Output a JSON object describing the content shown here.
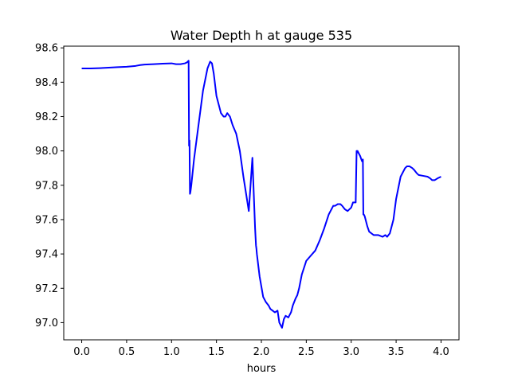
{
  "chart_data": {
    "type": "line",
    "title": "Water Depth h at gauge 535",
    "xlabel": "hours",
    "ylabel": "",
    "xlim": [
      -0.2,
      4.2
    ],
    "ylim": [
      96.9,
      98.61
    ],
    "xticks": [
      0.0,
      0.5,
      1.0,
      1.5,
      2.0,
      2.5,
      3.0,
      3.5,
      4.0
    ],
    "xtick_labels": [
      "0.0",
      "0.5",
      "1.0",
      "1.5",
      "2.0",
      "2.5",
      "3.0",
      "3.5",
      "4.0"
    ],
    "yticks": [
      97.0,
      97.2,
      97.4,
      97.6,
      97.8,
      98.0,
      98.2,
      98.4,
      98.6
    ],
    "ytick_labels": [
      "97.0",
      "97.2",
      "97.4",
      "97.6",
      "97.8",
      "98.0",
      "98.2",
      "98.4",
      "98.6"
    ],
    "grid": false,
    "series": [
      {
        "color": "#0000ff",
        "x": [
          0.0,
          0.1,
          0.2,
          0.3,
          0.4,
          0.5,
          0.6,
          0.65,
          0.7,
          0.8,
          0.9,
          1.0,
          1.05,
          1.1,
          1.15,
          1.17,
          1.19,
          1.195,
          1.2,
          1.205,
          1.21,
          1.215,
          1.22,
          1.25,
          1.3,
          1.35,
          1.4,
          1.43,
          1.45,
          1.47,
          1.5,
          1.55,
          1.58,
          1.6,
          1.62,
          1.65,
          1.68,
          1.72,
          1.76,
          1.8,
          1.83,
          1.86,
          1.9,
          1.93,
          1.935,
          1.94,
          1.945,
          1.95,
          1.98,
          2.02,
          2.05,
          2.08,
          2.1,
          2.15,
          2.18,
          2.2,
          2.23,
          2.25,
          2.27,
          2.3,
          2.33,
          2.35,
          2.38,
          2.4,
          2.42,
          2.45,
          2.5,
          2.55,
          2.6,
          2.65,
          2.7,
          2.75,
          2.8,
          2.82,
          2.85,
          2.88,
          2.9,
          2.93,
          2.96,
          3.0,
          3.02,
          3.05,
          3.06,
          3.065,
          3.07,
          3.1,
          3.12,
          3.13,
          3.135,
          3.14,
          3.15,
          3.18,
          3.2,
          3.25,
          3.3,
          3.35,
          3.38,
          3.4,
          3.43,
          3.47,
          3.5,
          3.55,
          3.6,
          3.62,
          3.65,
          3.68,
          3.7,
          3.73,
          3.75,
          3.8,
          3.85,
          3.88,
          3.9,
          3.93,
          3.96,
          4.0
        ],
        "y": [
          98.48,
          98.48,
          98.482,
          98.485,
          98.488,
          98.49,
          98.495,
          98.5,
          98.503,
          98.505,
          98.508,
          98.51,
          98.505,
          98.505,
          98.51,
          98.515,
          98.525,
          98.03,
          98.06,
          97.75,
          97.76,
          97.78,
          97.8,
          97.95,
          98.15,
          98.35,
          98.48,
          98.52,
          98.51,
          98.45,
          98.32,
          98.22,
          98.2,
          98.2,
          98.22,
          98.2,
          98.15,
          98.1,
          98.0,
          97.85,
          97.75,
          97.65,
          97.96,
          97.55,
          97.5,
          97.45,
          97.43,
          97.4,
          97.27,
          97.15,
          97.12,
          97.1,
          97.08,
          97.06,
          97.07,
          97.0,
          96.97,
          97.02,
          97.04,
          97.03,
          97.06,
          97.1,
          97.14,
          97.16,
          97.2,
          97.28,
          97.36,
          97.39,
          97.42,
          97.48,
          97.55,
          97.63,
          97.68,
          97.68,
          97.69,
          97.69,
          97.68,
          97.66,
          97.65,
          97.67,
          97.7,
          97.7,
          98.0,
          97.99,
          98.0,
          97.97,
          97.94,
          97.95,
          97.63,
          97.63,
          97.62,
          97.56,
          97.53,
          97.51,
          97.51,
          97.5,
          97.51,
          97.5,
          97.52,
          97.6,
          97.72,
          97.85,
          97.9,
          97.91,
          97.91,
          97.9,
          97.89,
          97.87,
          97.86,
          97.855,
          97.85,
          97.84,
          97.83,
          97.83,
          97.84,
          97.85
        ]
      }
    ]
  }
}
